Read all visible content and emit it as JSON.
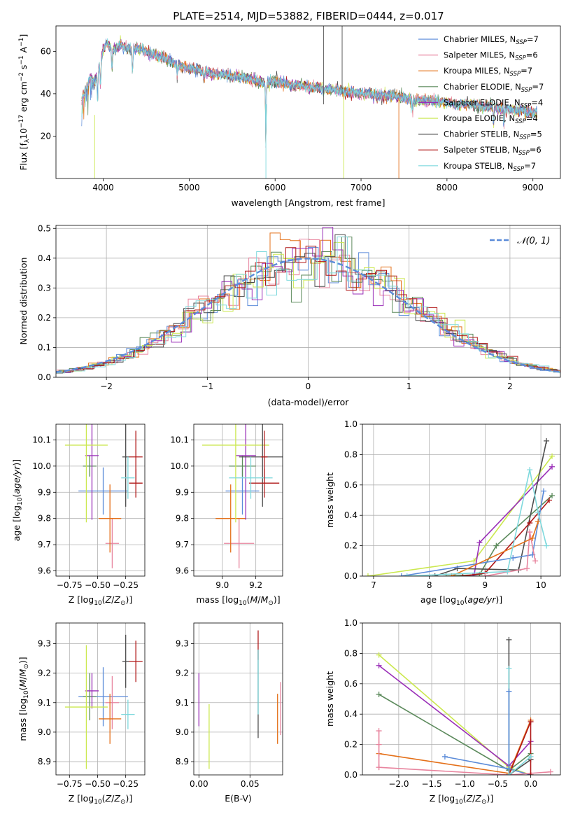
{
  "title": "PLATE=2514, MJD=53882, FIBERID=0444, z=0.017",
  "colors": {
    "chabrier_miles": "#5b8bd9",
    "salpeter_miles": "#e8849e",
    "kroupa_miles": "#e47019",
    "chabrier_elodie": "#5c8a5c",
    "salpeter_elodie": "#9a2fb8",
    "kroupa_elodie": "#cbe84f",
    "chabrier_stelib": "#4d4d4d",
    "salpeter_stelib": "#b01818",
    "kroupa_stelib": "#7fd9dd"
  },
  "chart_data": [
    {
      "id": "spectrum",
      "type": "line",
      "title": "PLATE=2514, MJD=53882, FIBERID=0444, z=0.017",
      "xlabel": "wavelength [Angstrom, rest frame]",
      "ylabel": "Flux [f_λ 10^-17 erg cm^-2 s^-1 A^-1]",
      "xlim": [
        3450,
        9320
      ],
      "ylim": [
        0,
        72
      ],
      "xticks": [
        4000,
        5000,
        6000,
        7000,
        8000,
        9000
      ],
      "yticks": [
        20,
        40,
        60
      ],
      "grid": false,
      "legend_position": "top-right",
      "legend": [
        "Chabrier MILES, N_SSP=7",
        "Salpeter MILES, N_SSP=6",
        "Kroupa MILES, N_SSP=7",
        "Chabrier ELODIE, N_SSP=7",
        "Salpeter ELODIE, N_SSP=4",
        "Kroupa ELODIE, N_SSP=4",
        "Chabrier STELIB, N_SSP=5",
        "Salpeter STELIB, N_SSP=6",
        "Kroupa STELIB, N_SSP=7"
      ],
      "x": [
        3750,
        3800,
        3850,
        3900,
        3950,
        4000,
        4050,
        4100,
        4200,
        4300,
        4400,
        4500,
        4600,
        4700,
        4800,
        4900,
        5000,
        5100,
        5200,
        5300,
        5400,
        5500,
        5600,
        5700,
        5800,
        5900,
        6000,
        6100,
        6200,
        6300,
        6400,
        6500,
        6600,
        6700,
        6800,
        6900,
        7000,
        7100,
        7200,
        7300,
        7400,
        7500,
        7600,
        7700,
        7800,
        7900,
        8000,
        8100,
        8200,
        8300,
        8400,
        8500,
        8600,
        8700,
        8800,
        8900,
        9000,
        9050
      ],
      "y": [
        37,
        42,
        48,
        45,
        52,
        61,
        64,
        60,
        63,
        61,
        61,
        60,
        58,
        57,
        55,
        53,
        52,
        51,
        50,
        49,
        49,
        48,
        48,
        47,
        46,
        45,
        46,
        45,
        44,
        44,
        43,
        43,
        42,
        42,
        41,
        41,
        40,
        40,
        39,
        39,
        39,
        38,
        37,
        37,
        37,
        36,
        36,
        35,
        35,
        35,
        34,
        34,
        33,
        33,
        32,
        32,
        31,
        31
      ]
    },
    {
      "id": "residuals",
      "type": "line",
      "xlabel": "(data-model)/error",
      "ylabel": "Normed distribution",
      "xlim": [
        -2.5,
        2.5
      ],
      "ylim": [
        0,
        0.51
      ],
      "xticks": [
        -2,
        -1,
        0,
        1,
        2
      ],
      "yticks": [
        0.0,
        0.1,
        0.2,
        0.3,
        0.4,
        0.5
      ],
      "grid": true,
      "legend_position": "top-right",
      "legend": [
        "N(0, 1)"
      ],
      "series": [
        {
          "name": "N(0, 1)",
          "function": "standard normal pdf",
          "style": "dashed"
        }
      ],
      "histogram_bin_width": 0.1
    },
    {
      "id": "age_vs_Z",
      "type": "scatter",
      "xlabel": "Z [log10(Z/Z⊙)]",
      "ylabel": "age [log10(age/yr)]",
      "xlim": [
        -0.87,
        -0.08
      ],
      "ylim": [
        9.58,
        10.16
      ],
      "xticks": [
        -0.75,
        -0.5,
        -0.25
      ],
      "yticks": [
        9.6,
        9.7,
        9.8,
        9.9,
        10.0,
        10.1
      ],
      "grid": true,
      "points": [
        {
          "key": "chabrier_miles",
          "x": -0.45,
          "xerr": 0.22,
          "y": 9.905,
          "yerr": 0.09
        },
        {
          "key": "salpeter_miles",
          "x": -0.37,
          "xerr": 0.06,
          "y": 9.705,
          "yerr": 0.095
        },
        {
          "key": "kroupa_miles",
          "x": -0.39,
          "xerr": 0.1,
          "y": 9.8,
          "yerr": 0.13
        },
        {
          "key": "chabrier_elodie",
          "x": -0.57,
          "xerr": 0.06,
          "y": 10.0,
          "yerr": 0.04
        },
        {
          "key": "salpeter_elodie",
          "x": -0.55,
          "xerr": 0.06,
          "y": 10.04,
          "yerr": 0.245
        },
        {
          "key": "kroupa_elodie",
          "x": -0.6,
          "xerr": 0.19,
          "y": 10.08,
          "yerr": 0.295
        },
        {
          "key": "chabrier_stelib",
          "x": -0.25,
          "xerr": 0.03,
          "y": 10.035,
          "yerr": 0.19
        },
        {
          "key": "salpeter_stelib",
          "x": -0.16,
          "xerr": 0.06,
          "y": 9.935,
          "yerr": 0.055
        },
        {
          "key": "kroupa_stelib",
          "x": -0.23,
          "xerr": 0.06,
          "y": 9.955,
          "yerr": 0.08
        },
        {
          "key": "salpeter_stelib",
          "x": -0.16,
          "xerr": 0.06,
          "y": 10.035,
          "yerr": 0.1
        }
      ]
    },
    {
      "id": "age_vs_mass",
      "type": "scatter",
      "xlabel": "mass [log10(M/M⊙)]",
      "ylabel": "",
      "xlim": [
        8.83,
        9.36
      ],
      "ylim": [
        9.58,
        10.16
      ],
      "xticks": [
        9.0,
        9.2
      ],
      "yticks": [
        9.6,
        9.7,
        9.8,
        9.9,
        10.0,
        10.1
      ],
      "grid": true,
      "points": [
        {
          "key": "chabrier_miles",
          "x": 9.12,
          "xerr": 0.1,
          "y": 9.905,
          "yerr": 0.09
        },
        {
          "key": "salpeter_miles",
          "x": 9.1,
          "xerr": 0.09,
          "y": 9.705,
          "yerr": 0.095
        },
        {
          "key": "kroupa_miles",
          "x": 9.05,
          "xerr": 0.09,
          "y": 9.8,
          "yerr": 0.13
        },
        {
          "key": "chabrier_elodie",
          "x": 9.12,
          "xerr": 0.08,
          "y": 10.0,
          "yerr": 0.04
        },
        {
          "key": "salpeter_elodie",
          "x": 9.14,
          "xerr": 0.06,
          "y": 10.04,
          "yerr": 0.245
        },
        {
          "key": "kroupa_elodie",
          "x": 9.08,
          "xerr": 0.2,
          "y": 10.08,
          "yerr": 0.295
        },
        {
          "key": "chabrier_stelib",
          "x": 9.24,
          "xerr": 0.14,
          "y": 10.035,
          "yerr": 0.19
        },
        {
          "key": "salpeter_stelib",
          "x": 9.25,
          "xerr": 0.09,
          "y": 9.935,
          "yerr": 0.055
        },
        {
          "key": "kroupa_stelib",
          "x": 9.17,
          "xerr": 0.13,
          "y": 9.955,
          "yerr": 0.08
        },
        {
          "key": "salpeter_stelib",
          "x": 9.25,
          "xerr": 0.02,
          "y": 10.035,
          "yerr": 0.1
        }
      ]
    },
    {
      "id": "weight_vs_age",
      "type": "line",
      "xlabel": "age [log10(age/yr)]",
      "ylabel": "mass weight",
      "xlim": [
        6.8,
        10.35
      ],
      "ylim": [
        0,
        1.0
      ],
      "xticks": [
        7,
        8,
        9,
        10
      ],
      "yticks": [
        0.0,
        0.2,
        0.4,
        0.6,
        0.8,
        1.0
      ],
      "grid": true,
      "series": [
        {
          "key": "kroupa_elodie",
          "x": [
            6.9,
            8.8,
            10.2
          ],
          "y": [
            0.0,
            0.1,
            0.79
          ]
        },
        {
          "key": "salpeter_elodie",
          "x": [
            8.78,
            8.8,
            8.9,
            10.2
          ],
          "y": [
            0.0,
            0.0,
            0.22,
            0.72
          ]
        },
        {
          "key": "chabrier_elodie",
          "x": [
            8.3,
            8.9,
            9.2,
            10.2
          ],
          "y": [
            0.0,
            0.01,
            0.2,
            0.53
          ]
        },
        {
          "key": "chabrier_stelib",
          "x": [
            8.1,
            8.5,
            9.6,
            10.1
          ],
          "y": [
            0.0,
            0.05,
            0.04,
            0.89
          ]
        },
        {
          "key": "salpeter_stelib",
          "x": [
            8.6,
            9.0,
            9.8,
            10.15
          ],
          "y": [
            0.0,
            0.02,
            0.35,
            0.5
          ]
        },
        {
          "key": "chabrier_miles",
          "x": [
            7.5,
            9.5,
            9.85,
            10.05
          ],
          "y": [
            0.0,
            0.12,
            0.14,
            0.56
          ]
        },
        {
          "key": "salpeter_miles",
          "x": [
            9.0,
            9.75,
            9.8,
            9.9
          ],
          "y": [
            0.0,
            0.05,
            0.29,
            0.1
          ]
        },
        {
          "key": "kroupa_miles",
          "x": [
            8.4,
            9.85,
            9.95
          ],
          "y": [
            0.0,
            0.25,
            0.36
          ]
        },
        {
          "key": "kroupa_stelib",
          "x": [
            7.6,
            9.4,
            9.8,
            9.95,
            10.1
          ],
          "y": [
            0.0,
            0.03,
            0.7,
            0.42,
            0.2
          ]
        }
      ]
    },
    {
      "id": "mass_vs_Z",
      "type": "scatter",
      "xlabel": "Z [log10(Z/Z⊙)]",
      "ylabel": "mass [log10(M/M⊙)]",
      "xlim": [
        -0.87,
        -0.08
      ],
      "ylim": [
        8.855,
        9.37
      ],
      "xticks": [
        -0.75,
        -0.5,
        -0.25
      ],
      "yticks": [
        8.9,
        9.0,
        9.1,
        9.2,
        9.3
      ],
      "grid": true,
      "points": [
        {
          "key": "chabrier_miles",
          "x": -0.45,
          "xerr": 0.22,
          "y": 9.12,
          "yerr": 0.1
        },
        {
          "key": "salpeter_miles",
          "x": -0.37,
          "xerr": 0.06,
          "y": 9.1,
          "yerr": 0.09
        },
        {
          "key": "kroupa_miles",
          "x": -0.39,
          "xerr": 0.1,
          "y": 9.045,
          "yerr": 0.085
        },
        {
          "key": "chabrier_elodie",
          "x": -0.57,
          "xerr": 0.06,
          "y": 9.12,
          "yerr": 0.08
        },
        {
          "key": "salpeter_elodie",
          "x": -0.55,
          "xerr": 0.06,
          "y": 9.14,
          "yerr": 0.06
        },
        {
          "key": "kroupa_elodie",
          "x": -0.6,
          "xerr": 0.19,
          "y": 9.085,
          "yerr": 0.21
        },
        {
          "key": "chabrier_stelib",
          "x": -0.25,
          "xerr": 0.03,
          "y": 9.24,
          "yerr": 0.09
        },
        {
          "key": "salpeter_stelib",
          "x": -0.16,
          "xerr": 0.06,
          "y": 9.24,
          "yerr": 0.07
        },
        {
          "key": "kroupa_stelib",
          "x": -0.23,
          "xerr": 0.06,
          "y": 9.06,
          "yerr": 0.05
        }
      ]
    },
    {
      "id": "mass_vs_ebv",
      "type": "scatter",
      "xlabel": "E(B-V)",
      "ylabel": "",
      "xlim": [
        -0.005,
        0.082
      ],
      "ylim": [
        8.855,
        9.37
      ],
      "xticks": [
        0.0,
        0.05
      ],
      "yticks": [
        8.9,
        9.0,
        9.1,
        9.2,
        9.3
      ],
      "grid": true,
      "points": [
        {
          "key": "salpeter_elodie",
          "x": 0.0,
          "y": 9.11,
          "yerr": 0.09
        },
        {
          "key": "kroupa_elodie",
          "x": 0.01,
          "y": 8.985,
          "yerr": 0.11
        },
        {
          "key": "chabrier_stelib",
          "x": 0.058,
          "y": 9.13,
          "yerr": 0.15
        },
        {
          "key": "salpeter_stelib",
          "x": 0.058,
          "y": 9.295,
          "yerr": 0.05
        },
        {
          "key": "kroupa_stelib",
          "x": 0.058,
          "y": 9.17,
          "yerr": 0.11
        },
        {
          "key": "kroupa_miles",
          "x": 0.077,
          "y": 9.045,
          "yerr": 0.085
        },
        {
          "key": "salpeter_miles",
          "x": 0.08,
          "y": 9.08,
          "yerr": 0.09
        }
      ]
    },
    {
      "id": "weight_vs_Z",
      "type": "line",
      "xlabel": "Z [log10(Z/Z⊙)]",
      "ylabel": "mass weight",
      "xlim": [
        -2.55,
        0.45
      ],
      "ylim": [
        0,
        1.0
      ],
      "xticks": [
        -2.0,
        -1.5,
        -1.0,
        -0.5,
        0.0
      ],
      "yticks": [
        0.0,
        0.2,
        0.4,
        0.6,
        0.8,
        1.0
      ],
      "grid": true,
      "series": [
        {
          "key": "kroupa_elodie",
          "x": [
            -2.3,
            -0.33,
            0.0
          ],
          "y": [
            0.79,
            0.05,
            0.0
          ]
        },
        {
          "key": "salpeter_elodie",
          "x": [
            -2.3,
            -0.33,
            0.0
          ],
          "y": [
            0.72,
            0.06,
            0.22
          ]
        },
        {
          "key": "chabrier_elodie",
          "x": [
            -2.3,
            -0.33,
            0.0
          ],
          "y": [
            0.53,
            0.03,
            0.14
          ]
        },
        {
          "key": "kroupa_miles",
          "x": [
            -2.3,
            -0.33,
            0.0
          ],
          "y": [
            0.14,
            0.01,
            0.36
          ]
        },
        {
          "key": "chabrier_miles",
          "x": [
            -1.3,
            -0.33,
            0.0
          ],
          "y": [
            0.12,
            0.04,
            0.0
          ]
        },
        {
          "key": "salpeter_miles",
          "x": [
            -2.3,
            -0.33,
            0.3
          ],
          "y": [
            0.05,
            0.0,
            0.02
          ]
        },
        {
          "key": "chabrier_stelib",
          "x": [
            -0.33,
            -0.33,
            0.0
          ],
          "y": [
            0.89,
            0.0,
            0.1
          ]
        },
        {
          "key": "salpeter_stelib",
          "x": [
            -0.33,
            0.0,
            0.0
          ],
          "y": [
            0.0,
            0.35,
            0.0
          ]
        },
        {
          "key": "kroupa_stelib",
          "x": [
            -0.33,
            -0.33,
            0.0
          ],
          "y": [
            0.7,
            0.0,
            0.12
          ]
        },
        {
          "key": "salpeter_miles",
          "x": [
            -2.3,
            -2.3,
            -2.3
          ],
          "y": [
            0.05,
            0.2,
            0.29
          ]
        },
        {
          "key": "chabrier_miles",
          "x": [
            -0.33,
            -0.33
          ],
          "y": [
            0.04,
            0.55
          ]
        }
      ]
    }
  ]
}
